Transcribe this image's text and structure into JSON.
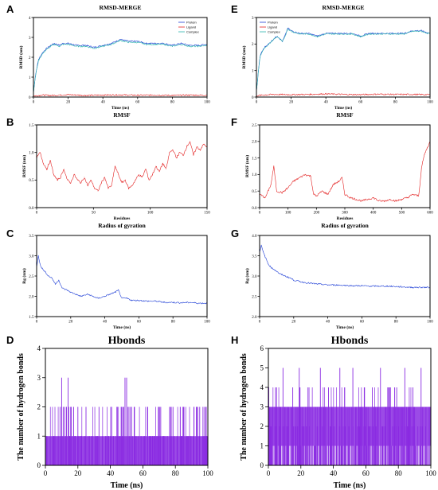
{
  "chart_data": [
    {
      "panel": "A",
      "type": "line",
      "title": "RMSD-MERGE",
      "xlabel": "Time (ns)",
      "ylabel": "RMSD (nm)",
      "xlim": [
        0,
        100
      ],
      "ylim": [
        0,
        4
      ],
      "xticks": [
        0,
        20,
        40,
        60,
        80,
        100
      ],
      "yticks": [
        0,
        1,
        2,
        3,
        4
      ],
      "legend": "top-right",
      "series": [
        {
          "name": "Protein",
          "color": "#1f3fd6",
          "x": [
            0,
            1,
            2,
            3,
            5,
            7,
            10,
            12,
            15,
            17,
            20,
            25,
            30,
            35,
            40,
            45,
            50,
            55,
            60,
            65,
            70,
            75,
            80,
            85,
            90,
            95,
            100
          ],
          "y": [
            0.2,
            1.0,
            1.5,
            1.9,
            2.2,
            2.4,
            2.6,
            2.7,
            2.6,
            2.7,
            2.7,
            2.6,
            2.6,
            2.5,
            2.6,
            2.7,
            2.9,
            2.8,
            2.8,
            2.7,
            2.7,
            2.7,
            2.6,
            2.7,
            2.6,
            2.6,
            2.65
          ]
        },
        {
          "name": "Ligand",
          "color": "#e32222",
          "x": [
            0,
            5,
            10,
            20,
            30,
            40,
            50,
            60,
            70,
            80,
            90,
            100
          ],
          "y": [
            0.05,
            0.1,
            0.08,
            0.12,
            0.08,
            0.1,
            0.11,
            0.09,
            0.1,
            0.08,
            0.1,
            0.09
          ]
        },
        {
          "name": "Complex",
          "color": "#2eb5b0",
          "x": [
            0,
            1,
            2,
            3,
            5,
            7,
            10,
            12,
            15,
            17,
            20,
            25,
            30,
            35,
            40,
            45,
            50,
            55,
            60,
            65,
            70,
            75,
            80,
            85,
            90,
            95,
            100
          ],
          "y": [
            0.2,
            0.95,
            1.45,
            1.85,
            2.15,
            2.35,
            2.55,
            2.65,
            2.55,
            2.65,
            2.65,
            2.55,
            2.55,
            2.45,
            2.55,
            2.65,
            2.85,
            2.75,
            2.75,
            2.65,
            2.65,
            2.65,
            2.55,
            2.65,
            2.55,
            2.55,
            2.6
          ]
        }
      ]
    },
    {
      "panel": "E",
      "type": "line",
      "title": "RMSD-MERGE",
      "xlabel": "Time (ns)",
      "ylabel": "RMSD (nm)",
      "xlim": [
        0,
        100
      ],
      "ylim": [
        0,
        3
      ],
      "xticks": [
        0,
        20,
        40,
        60,
        80,
        100
      ],
      "yticks": [
        0,
        1,
        2,
        3
      ],
      "legend": "top-left",
      "series": [
        {
          "name": "Protein",
          "color": "#1f3fd6",
          "x": [
            0,
            1,
            2,
            3,
            5,
            7,
            10,
            12,
            15,
            17,
            18,
            20,
            25,
            30,
            35,
            40,
            45,
            50,
            55,
            60,
            65,
            70,
            75,
            80,
            85,
            90,
            95,
            100
          ],
          "y": [
            0.2,
            0.9,
            1.5,
            1.7,
            1.9,
            2.0,
            2.2,
            2.3,
            2.1,
            2.4,
            2.6,
            2.5,
            2.4,
            2.4,
            2.3,
            2.4,
            2.4,
            2.4,
            2.4,
            2.3,
            2.4,
            2.4,
            2.4,
            2.4,
            2.4,
            2.5,
            2.5,
            2.4
          ]
        },
        {
          "name": "Ligand",
          "color": "#e32222",
          "x": [
            0,
            5,
            10,
            20,
            30,
            40,
            50,
            60,
            70,
            80,
            90,
            100
          ],
          "y": [
            0.05,
            0.08,
            0.1,
            0.09,
            0.1,
            0.12,
            0.1,
            0.09,
            0.11,
            0.1,
            0.1,
            0.09
          ]
        },
        {
          "name": "Complex",
          "color": "#2eb5b0",
          "x": [
            0,
            1,
            2,
            3,
            5,
            7,
            10,
            12,
            15,
            17,
            18,
            20,
            25,
            30,
            35,
            40,
            45,
            50,
            55,
            60,
            65,
            70,
            75,
            80,
            85,
            90,
            95,
            100
          ],
          "y": [
            0.2,
            0.88,
            1.48,
            1.68,
            1.88,
            1.98,
            2.18,
            2.28,
            2.08,
            2.38,
            2.58,
            2.48,
            2.38,
            2.38,
            2.28,
            2.38,
            2.38,
            2.38,
            2.38,
            2.28,
            2.38,
            2.38,
            2.38,
            2.38,
            2.38,
            2.48,
            2.48,
            2.38
          ]
        }
      ]
    },
    {
      "panel": "B",
      "type": "line",
      "title": "RMSF",
      "xlabel": "Residues",
      "ylabel": "RMSF (nm)",
      "xlim": [
        0,
        150
      ],
      "ylim": [
        0,
        1.5
      ],
      "xticks": [
        0,
        50,
        100,
        150
      ],
      "yticks": [
        0,
        0.5,
        1.0,
        1.5
      ],
      "series": [
        {
          "name": "",
          "color": "#e32222",
          "x": [
            0,
            3,
            6,
            9,
            12,
            15,
            18,
            21,
            24,
            27,
            30,
            33,
            36,
            39,
            42,
            45,
            48,
            51,
            54,
            57,
            60,
            63,
            66,
            69,
            72,
            75,
            78,
            81,
            84,
            87,
            90,
            93,
            96,
            99,
            102,
            105,
            108,
            111,
            114,
            117,
            120,
            123,
            126,
            129,
            132,
            135,
            138,
            141,
            144,
            147,
            150
          ],
          "y": [
            0.9,
            1.0,
            0.8,
            0.7,
            0.85,
            0.6,
            0.5,
            0.55,
            0.7,
            0.5,
            0.45,
            0.6,
            0.5,
            0.45,
            0.55,
            0.4,
            0.5,
            0.35,
            0.3,
            0.45,
            0.55,
            0.35,
            0.4,
            0.75,
            0.6,
            0.45,
            0.5,
            0.35,
            0.4,
            0.5,
            0.6,
            0.55,
            0.7,
            0.5,
            0.6,
            0.75,
            0.65,
            0.8,
            0.7,
            1.0,
            1.05,
            0.9,
            1.0,
            0.95,
            1.1,
            1.2,
            0.95,
            1.1,
            1.05,
            1.15,
            1.1
          ]
        }
      ]
    },
    {
      "panel": "F",
      "type": "line",
      "title": "RMSF",
      "xlabel": "Residues",
      "ylabel": "RMSF (nm)",
      "xlim": [
        0,
        600
      ],
      "ylim": [
        0,
        2.5
      ],
      "xticks": [
        0,
        100,
        200,
        300,
        400,
        500,
        600
      ],
      "yticks": [
        0,
        0.5,
        1.0,
        1.5,
        2.0,
        2.5
      ],
      "series": [
        {
          "name": "",
          "color": "#e32222",
          "x": [
            0,
            20,
            40,
            50,
            60,
            80,
            100,
            120,
            140,
            160,
            180,
            190,
            200,
            220,
            240,
            260,
            280,
            290,
            300,
            320,
            340,
            360,
            380,
            400,
            420,
            440,
            460,
            480,
            500,
            520,
            540,
            560,
            570,
            580,
            590,
            600
          ],
          "y": [
            0.4,
            0.3,
            0.7,
            1.25,
            0.5,
            0.45,
            0.6,
            0.8,
            0.9,
            1.0,
            0.95,
            0.4,
            0.35,
            0.5,
            0.4,
            0.7,
            0.8,
            0.9,
            0.4,
            0.3,
            0.25,
            0.2,
            0.25,
            0.3,
            0.2,
            0.2,
            0.25,
            0.2,
            0.25,
            0.3,
            0.4,
            0.35,
            1.2,
            1.6,
            1.8,
            2.0
          ]
        }
      ]
    },
    {
      "panel": "C",
      "type": "line",
      "title": "Radius of gyration",
      "xlabel": "Time (ns)",
      "ylabel": "Rg (nm)",
      "xlim": [
        0,
        100
      ],
      "ylim": [
        1.5,
        3.5
      ],
      "xticks": [
        0,
        20,
        40,
        60,
        80,
        100
      ],
      "yticks": [
        1.5,
        2.0,
        2.5,
        3.0,
        3.5
      ],
      "series": [
        {
          "name": "",
          "color": "#1f3fd6",
          "x": [
            0,
            1,
            2,
            3,
            5,
            7,
            9,
            11,
            13,
            15,
            18,
            20,
            23,
            26,
            30,
            33,
            36,
            40,
            43,
            46,
            48,
            50,
            53,
            56,
            60,
            65,
            70,
            75,
            80,
            85,
            90,
            95,
            100
          ],
          "y": [
            2.7,
            3.0,
            2.8,
            2.7,
            2.6,
            2.5,
            2.45,
            2.3,
            2.4,
            2.2,
            2.15,
            2.1,
            2.05,
            2.0,
            2.05,
            2.0,
            1.95,
            2.0,
            2.05,
            2.1,
            2.15,
            1.95,
            1.95,
            1.9,
            1.9,
            1.88,
            1.88,
            1.85,
            1.85,
            1.84,
            1.85,
            1.83,
            1.83
          ]
        }
      ]
    },
    {
      "panel": "G",
      "type": "line",
      "title": "Radius of gyration",
      "xlabel": "Time (ns)",
      "ylabel": "Rg (nm)",
      "xlim": [
        0,
        100
      ],
      "ylim": [
        2.0,
        4.0
      ],
      "xticks": [
        0,
        20,
        40,
        60,
        80,
        100
      ],
      "yticks": [
        2.0,
        2.5,
        3.0,
        3.5,
        4.0
      ],
      "series": [
        {
          "name": "",
          "color": "#1f3fd6",
          "x": [
            0,
            1,
            2,
            3,
            5,
            7,
            9,
            12,
            15,
            18,
            20,
            25,
            30,
            35,
            40,
            45,
            50,
            55,
            60,
            65,
            70,
            75,
            80,
            85,
            90,
            95,
            100
          ],
          "y": [
            3.6,
            3.75,
            3.6,
            3.5,
            3.3,
            3.2,
            3.15,
            3.05,
            3.0,
            2.95,
            2.9,
            2.85,
            2.82,
            2.8,
            2.78,
            2.78,
            2.77,
            2.76,
            2.76,
            2.75,
            2.75,
            2.75,
            2.74,
            2.73,
            2.72,
            2.72,
            2.72
          ]
        }
      ]
    },
    {
      "panel": "D",
      "type": "bar",
      "title": "Hbonds",
      "xlabel": "Time (ns)",
      "ylabel": "The number of hydrogen bonds",
      "xlim": [
        0,
        100
      ],
      "ylim": [
        0,
        4
      ],
      "xticks": [
        0,
        20,
        40,
        60,
        80,
        100
      ],
      "yticks": [
        0,
        1,
        2,
        3,
        4
      ],
      "series": [
        {
          "name": "",
          "color": "#8a2be2",
          "x": [
            1,
            3,
            6,
            8,
            9,
            10,
            11,
            12,
            13,
            14,
            15,
            16,
            18,
            20,
            22,
            24,
            25,
            27,
            29,
            31,
            33,
            35,
            37,
            39,
            40,
            42,
            44,
            46,
            47,
            48,
            49,
            50,
            51,
            52,
            53,
            55,
            57,
            59,
            61,
            63,
            65,
            67,
            69,
            71,
            73,
            75,
            77,
            79,
            81,
            83,
            85,
            87,
            89,
            91,
            93,
            95,
            97,
            98,
            99
          ],
          "y": [
            1,
            1,
            1,
            1,
            2,
            3,
            2,
            2,
            2,
            3,
            1,
            2,
            1,
            2,
            1,
            1,
            2,
            1,
            1,
            1,
            2,
            1,
            1,
            1,
            1,
            1,
            2,
            1,
            2,
            2,
            3,
            3,
            2,
            2,
            2,
            1,
            1,
            1,
            1,
            2,
            1,
            1,
            1,
            2,
            1,
            1,
            2,
            1,
            1,
            2,
            2,
            1,
            1,
            1,
            2,
            2,
            2,
            2,
            2
          ]
        }
      ]
    },
    {
      "panel": "H",
      "type": "bar",
      "title": "Hbonds",
      "xlabel": "Time (ns)",
      "ylabel": "The number of hydrogen bonds",
      "xlim": [
        0,
        100
      ],
      "ylim": [
        0,
        6
      ],
      "xticks": [
        0,
        20,
        40,
        60,
        80,
        100
      ],
      "yticks": [
        0,
        1,
        2,
        3,
        4,
        5,
        6
      ],
      "series": [
        {
          "name": "",
          "color": "#8a2be2",
          "x": [
            1,
            2,
            4,
            5,
            7,
            9,
            10,
            12,
            14,
            15,
            17,
            19,
            20,
            22,
            24,
            25,
            27,
            29,
            30,
            32,
            34,
            35,
            37,
            39,
            40,
            42,
            44,
            45,
            47,
            49,
            50,
            52,
            54,
            55,
            57,
            59,
            60,
            62,
            64,
            65,
            67,
            69,
            70,
            72,
            74,
            75,
            77,
            79,
            80,
            82,
            84,
            85,
            87,
            89,
            90,
            92,
            94,
            95,
            97,
            99
          ],
          "y": [
            3,
            2,
            3,
            4,
            3,
            5,
            3,
            2,
            3,
            4,
            3,
            5,
            3,
            2,
            3,
            4,
            3,
            3,
            2,
            5,
            3,
            3,
            4,
            3,
            2,
            3,
            5,
            3,
            4,
            3,
            3,
            5,
            3,
            2,
            3,
            4,
            3,
            2,
            4,
            3,
            3,
            5,
            2,
            3,
            4,
            3,
            3,
            4,
            2,
            3,
            5,
            3,
            3,
            4,
            3,
            2,
            5,
            3,
            3,
            3
          ]
        }
      ]
    }
  ]
}
